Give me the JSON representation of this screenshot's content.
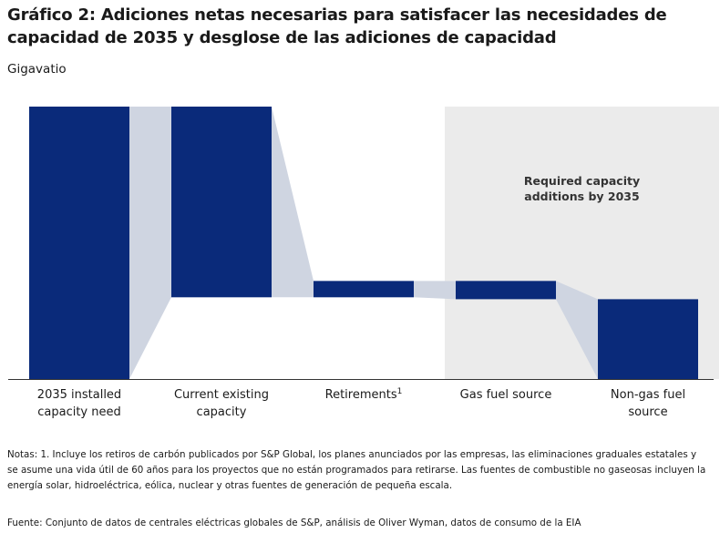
{
  "title": "Gráfico 2: Adiciones netas necesarias para satisfacer las necesidades de capacidad de 2035 y desglose de las adiciones de capacidad",
  "unit_label": "Gigavatio",
  "chart_data": {
    "type": "bar",
    "subtype": "waterfall",
    "ylabel": "Gigavatio",
    "categories": [
      "2035 installed capacity need",
      "Current existing capacity",
      "Retirements",
      "Gas fuel source",
      "Non-gas fuel source"
    ],
    "category_superscripts": [
      "",
      "",
      "1",
      "",
      ""
    ],
    "bars": [
      {
        "category": "2035 installed capacity need",
        "start": 0,
        "end": 100
      },
      {
        "category": "Current existing capacity",
        "start": 0,
        "end": 70
      },
      {
        "category": "Retirements",
        "start": 70,
        "end": 64
      },
      {
        "category": "Gas fuel source",
        "start": 64,
        "end": 70.7
      },
      {
        "category": "Non-gas fuel source",
        "start": 70.7,
        "end": 100
      }
    ],
    "ylim": [
      0,
      100
    ],
    "y_direction": "down",
    "highlight_region": {
      "categories": [
        "Gas fuel source",
        "Non-gas fuel source"
      ],
      "label": "Required capacity additions by 2035"
    },
    "bar_color": "#0a2a7a",
    "connector_color": "#cfd5e1",
    "highlight_color": "#ebebeb",
    "axis_color": "#333333",
    "grid": false,
    "legend": "none"
  },
  "notes": "Notas: 1. Incluye los retiros de carbón publicados por S&P Global, los planes anunciados por las empresas, las eliminaciones graduales estatales y se asume una vida útil de 60 años para los proyectos que no están programados para retirarse. Las fuentes de combustible no gaseosas incluyen la energía solar, hidroeléctrica, eólica, nuclear y otras fuentes de generación de pequeña escala.",
  "source": "Fuente: Conjunto de datos de centrales eléctricas globales de S&P, análisis de Oliver Wyman, datos de consumo de la EIA"
}
